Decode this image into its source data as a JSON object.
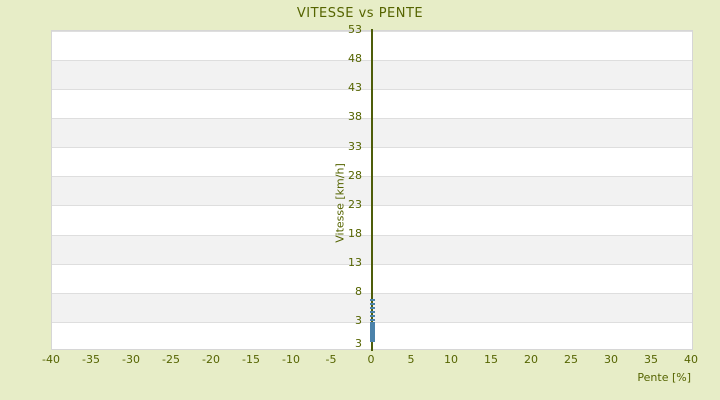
{
  "colors": {
    "background": "#e7edc7",
    "text_olive": "#556400",
    "axis_line": "#4e5d0a",
    "marker_blue": "#4b82aa",
    "band_gray": "#f2f2f2",
    "band_white": "#ffffff",
    "gridline": "#dedede",
    "plot_border": "#d6d6d6"
  },
  "chart_data": {
    "type": "scatter",
    "title": "VITESSE vs PENTE",
    "xlabel": "Pente [%]",
    "ylabel": "Vitesse [km/h]",
    "xlim": [
      -40,
      40
    ],
    "ylim": [
      -1.55,
      53
    ],
    "x_ticks": [
      -40,
      -35,
      -30,
      -25,
      -20,
      -15,
      -10,
      -5,
      0,
      5,
      10,
      15,
      20,
      25,
      30,
      35,
      40
    ],
    "y_ticks": [
      53,
      48,
      43,
      38,
      33,
      28,
      23,
      18,
      13,
      8,
      3
    ],
    "y_axis_min_label": "3",
    "grid": "horizontal-bands-alternating",
    "legend": "none",
    "series": [
      {
        "name": "vitesse-vs-pente",
        "marker": "horizontal-dash",
        "color": "#4b82aa",
        "points": [
          {
            "x": 0,
            "y": 6.9
          },
          {
            "x": 0,
            "y": 6.2
          },
          {
            "x": 0,
            "y": 5.5
          },
          {
            "x": 0,
            "y": 4.8
          },
          {
            "x": 0,
            "y": 4.1
          },
          {
            "x": 0,
            "y": 3.4
          },
          {
            "x": 0,
            "y": 2.9
          },
          {
            "x": 0,
            "y": 2.6
          },
          {
            "x": 0,
            "y": 2.2
          },
          {
            "x": 0,
            "y": 1.9
          },
          {
            "x": 0,
            "y": 1.5
          },
          {
            "x": 0,
            "y": 1.2
          },
          {
            "x": 0,
            "y": 0.9
          },
          {
            "x": 0,
            "y": 0.5
          },
          {
            "x": 0,
            "y": 0.2
          },
          {
            "x": 0,
            "y": -0.2
          }
        ]
      }
    ]
  }
}
